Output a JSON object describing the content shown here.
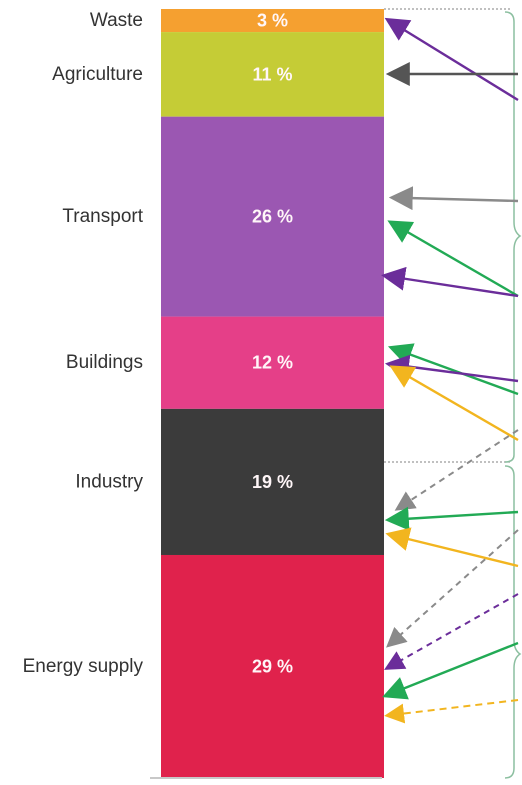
{
  "chart_data": {
    "type": "bar",
    "stacked": true,
    "orientation": "vertical",
    "unit": "%",
    "categories": [
      "Waste",
      "Agriculture",
      "Transport",
      "Buildings",
      "Industry",
      "Energy supply"
    ],
    "values": [
      3,
      11,
      26,
      12,
      19,
      29
    ],
    "labels": [
      "3 %",
      "11 %",
      "26 %",
      "12 %",
      "19 %",
      "29 %"
    ],
    "colors": [
      "#f5a030",
      "#c5cc36",
      "#9b57b2",
      "#e53f88",
      "#3b3b3b",
      "#e0224c"
    ],
    "title": "",
    "xlabel": "",
    "ylabel": "",
    "legend": "none",
    "grid": false,
    "annotations": {
      "arrows": "colored arrows point from a bracket on the right toward segments",
      "arrow_colors": [
        "#6b2d9a",
        "#555555",
        "#8a8a8a",
        "#22aa55",
        "#f2b51f"
      ]
    }
  }
}
